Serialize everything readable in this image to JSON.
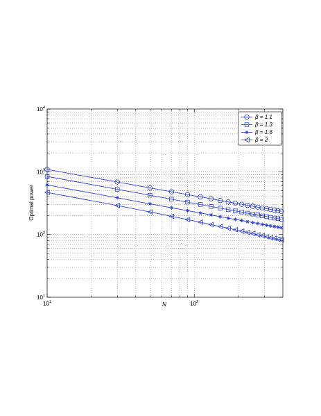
{
  "chart_data": {
    "type": "line",
    "xlabel": "N",
    "ylabel": "Optimal power",
    "log_x": true,
    "log_y": true,
    "grid": true,
    "legend": "upper right",
    "x": [
      10,
      30,
      50,
      70,
      90,
      110,
      130,
      150,
      170,
      190,
      210,
      230,
      250,
      270,
      290,
      310,
      330,
      350,
      370,
      390
    ],
    "series": [
      {
        "name": "β = 1.1",
        "color": "#2a40d4",
        "marker": "circle",
        "values": [
          1089,
          687,
          553,
          481,
          433,
          398,
          371,
          349,
          331,
          316,
          303,
          292,
          282,
          273,
          265,
          258,
          251,
          245,
          239,
          234
        ]
      },
      {
        "name": "β = 1.3",
        "color": "#2a40d4",
        "marker": "square",
        "values": [
          843,
          526,
          422,
          366,
          328,
          301,
          280,
          263,
          249,
          238,
          228,
          219,
          211,
          205,
          198,
          193,
          187,
          183,
          179,
          175
        ]
      },
      {
        "name": "β = 1.6",
        "color": "#2a40d4",
        "marker": "star",
        "values": [
          617,
          385,
          308,
          267,
          240,
          220,
          205,
          192,
          182,
          174,
          167,
          160,
          155,
          150,
          145,
          141,
          137,
          134,
          131,
          128
        ]
      },
      {
        "name": "β = 2",
        "color": "#2a40d4",
        "marker": "triangle-left",
        "values": [
          468,
          290,
          229,
          195,
          173,
          157,
          144,
          134,
          126,
          119,
          113,
          108,
          104,
          99,
          96,
          92,
          89,
          87,
          84,
          82
        ]
      }
    ],
    "xlim": [
      10,
      400
    ],
    "ylim": [
      10,
      10000
    ],
    "xticks": [
      {
        "value": 10,
        "label": "10",
        "exponent": "1"
      },
      {
        "value": 100,
        "label": "10",
        "exponent": "2"
      }
    ],
    "yticks": [
      {
        "value": 10,
        "label": "10",
        "exponent": "1"
      },
      {
        "value": 100,
        "label": "10",
        "exponent": "2"
      },
      {
        "value": 1000,
        "label": "10",
        "exponent": "3"
      },
      {
        "value": 10000,
        "label": "10",
        "exponent": "4"
      }
    ],
    "xminorticks": [
      20,
      30,
      40,
      50,
      60,
      70,
      80,
      90,
      200,
      300
    ],
    "yminorticks": [
      20,
      30,
      40,
      50,
      60,
      70,
      80,
      90,
      200,
      300,
      400,
      500,
      600,
      700,
      800,
      900,
      2000,
      3000,
      4000,
      5000,
      6000,
      7000,
      8000,
      9000
    ]
  }
}
